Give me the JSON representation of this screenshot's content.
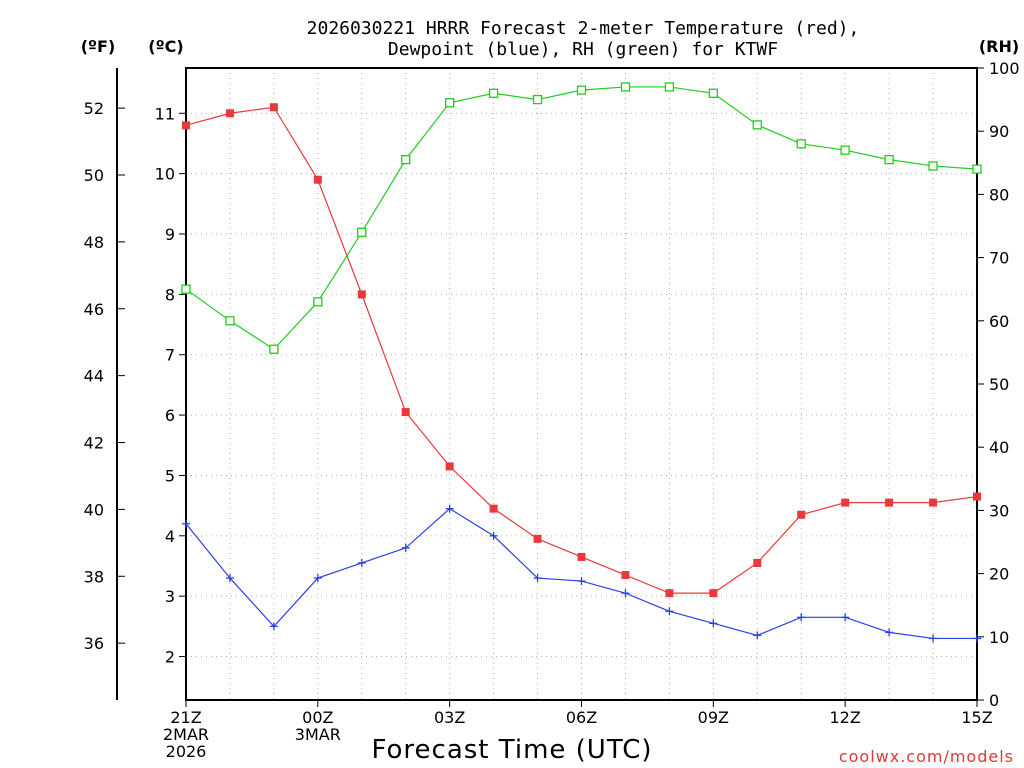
{
  "chart_data": {
    "type": "line",
    "title_line1": "2026030221 HRRR Forecast 2-meter Temperature (red),",
    "title_line2": "Dewpoint (blue), RH (green) for KTWF",
    "xlabel": "Forecast Time (UTC)",
    "credit": "coolwx.com/models",
    "units": {
      "fahrenheit": "(ºF)",
      "celsius": "(ºC)",
      "rh": "(RH)"
    },
    "x": [
      0,
      1,
      2,
      3,
      4,
      5,
      6,
      7,
      8,
      9,
      10,
      11,
      12,
      13,
      14,
      15,
      16,
      17,
      18
    ],
    "xlim": [
      0,
      18
    ],
    "x_ticks": [
      {
        "x": 0,
        "lines": [
          "21Z",
          "2MAR",
          "2026"
        ]
      },
      {
        "x": 3,
        "lines": [
          "00Z",
          "3MAR"
        ]
      },
      {
        "x": 6,
        "lines": [
          "03Z"
        ]
      },
      {
        "x": 9,
        "lines": [
          "06Z"
        ]
      },
      {
        "x": 12,
        "lines": [
          "09Z"
        ]
      },
      {
        "x": 15,
        "lines": [
          "12Z"
        ]
      },
      {
        "x": 18,
        "lines": [
          "15Z"
        ]
      }
    ],
    "celsius_axis": {
      "range": [
        1.28,
        11.75
      ],
      "ticks": [
        "2",
        "3",
        "4",
        "5",
        "6",
        "7",
        "8",
        "9",
        "10",
        "11"
      ]
    },
    "fahrenheit_axis": {
      "range": [
        34.3,
        53.2
      ],
      "ticks": [
        "36",
        "38",
        "40",
        "42",
        "44",
        "46",
        "48",
        "50",
        "52"
      ]
    },
    "rh_axis": {
      "range": [
        0,
        100
      ],
      "ticks": [
        "0",
        "10",
        "20",
        "30",
        "40",
        "50",
        "60",
        "70",
        "80",
        "90",
        "100"
      ]
    },
    "series": [
      {
        "name": "Temperature",
        "color": "#e8393c",
        "marker": "filled-square",
        "axis": "celsius",
        "values": [
          10.8,
          11.0,
          11.1,
          9.9,
          8.0,
          6.05,
          5.15,
          4.45,
          3.95,
          3.65,
          3.35,
          3.05,
          3.05,
          3.55,
          4.35,
          4.55,
          4.55,
          4.55,
          4.65
        ]
      },
      {
        "name": "Dewpoint",
        "color": "#2b3fe3",
        "marker": "plus",
        "axis": "celsius",
        "values": [
          4.2,
          3.3,
          2.5,
          3.3,
          3.55,
          3.8,
          4.45,
          4.0,
          3.3,
          3.25,
          3.05,
          2.75,
          2.55,
          2.35,
          2.65,
          2.65,
          2.4,
          2.3,
          2.3
        ]
      },
      {
        "name": "RH",
        "color": "#22cc22",
        "marker": "open-square",
        "axis": "rh",
        "values": [
          65,
          60,
          55.5,
          63,
          74,
          85.5,
          94.5,
          96,
          95,
          96.5,
          97,
          97,
          96,
          91,
          88,
          87,
          85.5,
          84.5,
          84
        ]
      }
    ]
  }
}
